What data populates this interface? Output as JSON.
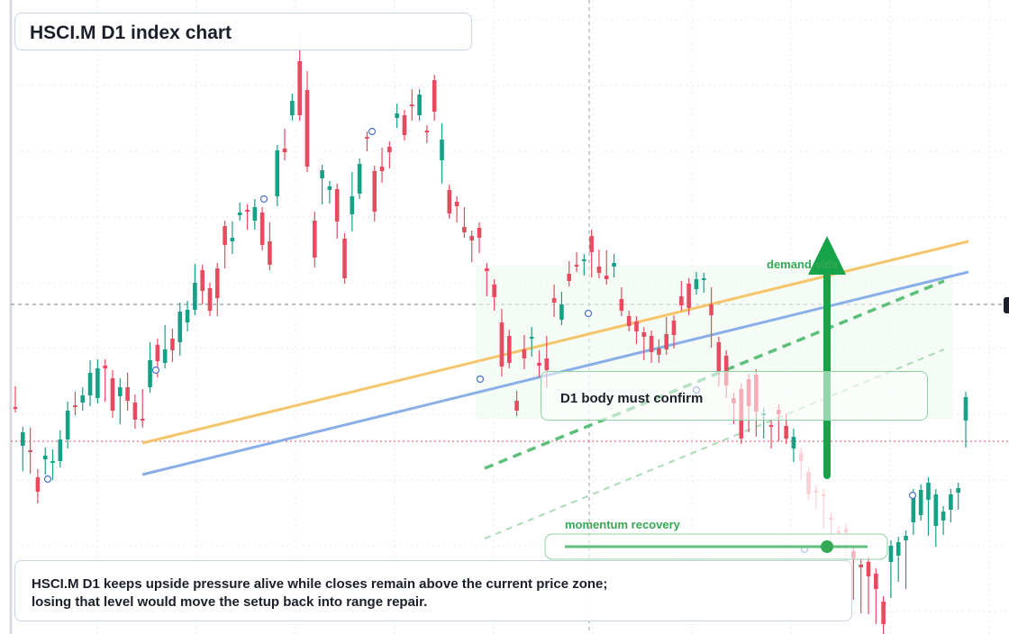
{
  "title": "HSCI.M D1 index chart",
  "annotations": {
    "demand_label": "demand side",
    "momentum_label": "momentum recovery",
    "confirm_text": "D1 body must confirm",
    "note_line1": "HSCI.M D1 keeps upside pressure alive while closes remain above the current price zone;",
    "note_line2": "losing that level would move the setup back into range repair."
  },
  "colors": {
    "up": "#16a085",
    "down": "#e84a5f",
    "accent_green": "#16a34a",
    "support_blue": "#8aaee8",
    "trend_orange": "#f5c56b",
    "dashed_green": "#5cc07a"
  },
  "chart_data": {
    "type": "candlestick",
    "title": "HSCI.M D1 index chart",
    "ohlc": [
      [
        452,
        452,
        435,
        440
      ],
      [
        495,
        480,
        517,
        497
      ],
      [
        500,
        500,
        481,
        520
      ],
      [
        530,
        546,
        527,
        553
      ],
      [
        510,
        506,
        521,
        503
      ],
      [
        513,
        512,
        527,
        505
      ],
      [
        512,
        488,
        513,
        484
      ],
      [
        488,
        456,
        492,
        452
      ],
      [
        450,
        451,
        441,
        455
      ],
      [
        447,
        439,
        450,
        436
      ],
      [
        439,
        414,
        445,
        406
      ],
      [
        442,
        409,
        440,
        405
      ],
      [
        406,
        409,
        440,
        405
      ],
      [
        420,
        456,
        458,
        417
      ],
      [
        440,
        430,
        465,
        426
      ],
      [
        430,
        445,
        450,
        420
      ],
      [
        447,
        466,
        444,
        470
      ],
      [
        465,
        467,
        438,
        469
      ],
      [
        430,
        400,
        418,
        386
      ],
      [
        383,
        401,
        382,
        413
      ],
      [
        403,
        388,
        367,
        386
      ],
      [
        376,
        389,
        371,
        396
      ],
      [
        380,
        346,
        389,
        342
      ],
      [
        358,
        344,
        340,
        362
      ],
      [
        344,
        314,
        340,
        299
      ],
      [
        300,
        323,
        309,
        332
      ],
      [
        320,
        345,
        334,
        333
      ],
      [
        298,
        331,
        298,
        345
      ],
      [
        251,
        272,
        260,
        292
      ],
      [
        268,
        264,
        252,
        276
      ],
      [
        239,
        236,
        236,
        231
      ],
      [
        233,
        233,
        249,
        233
      ],
      [
        245,
        230,
        249,
        227
      ],
      [
        236,
        272,
        246,
        252
      ],
      [
        268,
        294,
        253,
        284
      ],
      [
        218,
        167,
        209,
        223
      ],
      [
        165,
        169,
        149,
        172
      ],
      [
        128,
        112,
        128,
        110
      ],
      [
        68,
        128,
        68,
        41
      ],
      [
        100,
        185,
        185,
        85
      ],
      [
        245,
        286,
        291,
        241
      ],
      [
        198,
        189,
        221,
        190
      ],
      [
        211,
        207,
        220,
        218
      ],
      [
        210,
        246,
        232,
        259
      ],
      [
        265,
        309,
        289,
        308
      ],
      [
        238,
        218,
        197,
        251
      ],
      [
        215,
        182,
        200,
        186
      ],
      [
        152,
        152,
        162,
        159
      ],
      [
        190,
        235,
        207,
        240
      ],
      [
        185,
        190,
        197,
        170
      ],
      [
        163,
        169,
        168,
        181
      ],
      [
        131,
        126,
        136,
        121
      ],
      [
        128,
        150,
        135,
        137
      ],
      [
        116,
        117,
        105,
        128
      ],
      [
        128,
        105,
        108,
        125
      ],
      [
        145,
        146,
        153,
        145
      ],
      [
        89,
        124,
        111,
        128
      ],
      [
        178,
        155,
        198,
        143
      ],
      [
        211,
        237,
        228,
        229
      ],
      [
        224,
        229,
        241,
        239
      ],
      [
        252,
        258,
        236,
        251
      ],
      [
        262,
        267,
        285,
        272
      ],
      [
        253,
        264,
        261,
        275
      ],
      [
        298,
        301,
        323,
        312
      ],
      [
        316,
        330,
        322,
        339
      ],
      [
        358,
        407,
        412,
        349
      ],
      [
        373,
        403,
        372,
        398
      ],
      [
        445,
        456,
        440,
        453
      ],
      [
        388,
        398,
        404,
        378
      ],
      [
        375,
        374,
        369,
        390
      ],
      [
        403,
        406,
        395,
        413
      ],
      [
        398,
        411,
        424,
        379
      ],
      [
        331,
        336,
        322,
        346
      ],
      [
        355,
        338,
        330,
        354
      ],
      [
        304,
        312,
        296,
        307
      ],
      [
        294,
        296,
        286,
        288
      ],
      [
        290,
        288,
        300,
        291
      ],
      [
        262,
        280,
        302,
        261
      ],
      [
        296,
        303,
        289,
        283
      ],
      [
        306,
        310,
        284,
        308
      ],
      [
        296,
        292,
        288,
        302
      ],
      [
        332,
        345,
        325,
        329
      ],
      [
        351,
        362,
        351,
        359
      ],
      [
        357,
        368,
        357,
        376
      ],
      [
        369,
        374,
        394,
        380
      ],
      [
        373,
        391,
        381,
        397
      ],
      [
        387,
        394,
        383,
        397
      ],
      [
        371,
        388,
        358,
        379
      ],
      [
        356,
        372,
        381,
        356
      ],
      [
        329,
        339,
        318,
        325
      ],
      [
        315,
        342,
        315,
        344
      ],
      [
        321,
        310,
        320,
        308
      ],
      [
        311,
        309,
        310,
        319
      ],
      [
        338,
        350,
        380,
        325
      ],
      [
        380,
        413,
        385,
        423
      ],
      [
        395,
        428,
        413,
        436
      ],
      [
        442,
        448,
        446,
        465
      ],
      [
        432,
        487,
        458,
        478
      ],
      [
        421,
        451,
        474,
        443
      ],
      [
        416,
        457,
        470,
        479
      ],
      [
        460,
        459,
        481,
        459
      ],
      [
        472,
        472,
        492,
        478
      ],
      [
        455,
        460,
        484,
        455
      ],
      [
        473,
        487,
        465,
        484
      ],
      [
        498,
        485,
        507,
        482
      ],
      [
        503,
        512,
        503,
        526
      ],
      [
        524,
        549,
        549,
        526
      ],
      [
        545,
        545,
        560,
        548
      ],
      [
        549,
        549,
        570,
        581
      ],
      [
        575,
        575,
        603,
        590
      ],
      [
        590,
        590,
        609,
        604
      ],
      [
        587,
        591,
        630,
        609
      ],
      [
        612,
        620,
        660,
        637
      ],
      [
        627,
        630,
        675,
        658
      ],
      [
        624,
        640,
        676,
        640
      ],
      [
        637,
        654,
        687,
        659
      ],
      [
        668,
        693,
        702,
        672
      ],
      [
        624,
        606,
        658,
        621
      ],
      [
        617,
        602,
        640,
        612
      ],
      [
        600,
        595,
        648,
        628
      ],
      [
        580,
        549,
        588,
        587
      ],
      [
        572,
        544,
        566,
        561
      ],
      [
        555,
        536,
        589,
        545
      ],
      [
        584,
        549,
        601,
        573
      ],
      [
        578,
        568,
        588,
        583
      ],
      [
        566,
        549,
        574,
        560
      ],
      [
        547,
        542,
        560,
        555
      ],
      [
        467,
        441,
        486,
        491
      ]
    ],
    "markers": [
      "circle",
      "circle",
      "circle",
      "circle",
      "circle",
      "circle",
      "circle"
    ],
    "levels": [
      "current price zone",
      "trend line",
      "support line"
    ]
  }
}
